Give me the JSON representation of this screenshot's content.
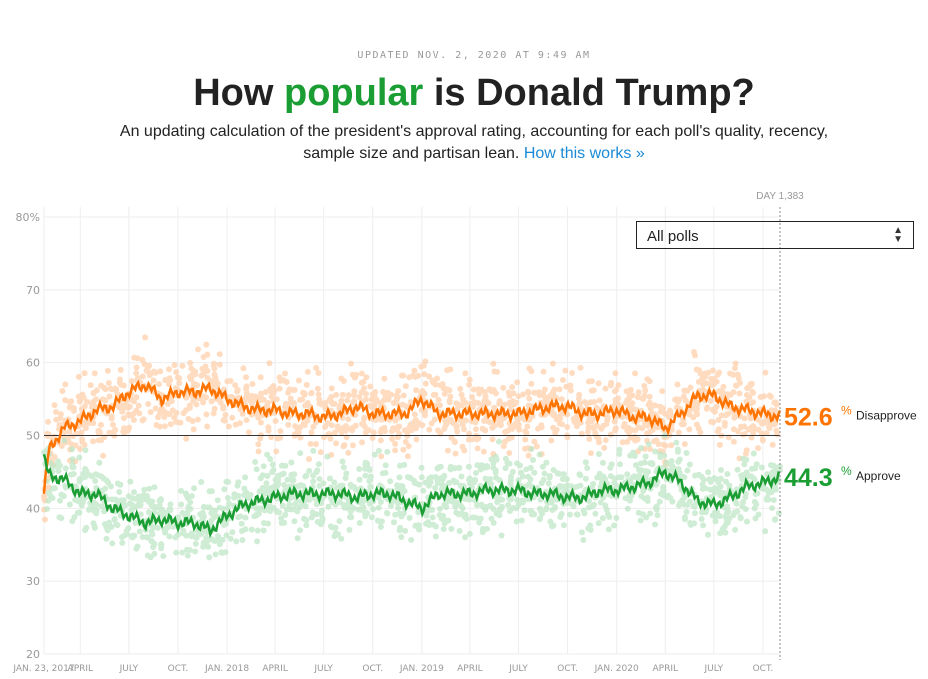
{
  "header": {
    "updated": "UPDATED NOV. 2, 2020 AT 9:49 AM",
    "title_pre": "How ",
    "title_em": "popular",
    "title_post": " is Donald Trump?",
    "subtitle": "An updating calculation of the president's approval rating, accounting for each poll's quality, recency, sample size and partisan lean.",
    "link": "How this works »"
  },
  "filter": {
    "selected": "All polls"
  },
  "colors": {
    "approve": "#1a9e33",
    "disapprove": "#ff7400",
    "approve_light": "#bfe6c6",
    "disapprove_light": "#ffd0ac"
  },
  "chart_data": {
    "type": "line",
    "day_label": "DAY 1,383",
    "ylim": [
      20,
      80
    ],
    "yticks": [
      "80%",
      "70",
      "60",
      "50",
      "40",
      "30",
      "20"
    ],
    "ytick_values": [
      80,
      70,
      60,
      50,
      40,
      30,
      20
    ],
    "reference_line": 50,
    "grid": true,
    "xticks": [
      {
        "date": "2017-01-23",
        "label": "JAN. 23, 2017"
      },
      {
        "date": "2017-04-01",
        "label": "APRIL"
      },
      {
        "date": "2017-07-01",
        "label": "JULY"
      },
      {
        "date": "2017-10-01",
        "label": "OCT."
      },
      {
        "date": "2018-01-01",
        "label": "JAN. 2018"
      },
      {
        "date": "2018-04-01",
        "label": "APRIL"
      },
      {
        "date": "2018-07-01",
        "label": "JULY"
      },
      {
        "date": "2018-10-01",
        "label": "OCT."
      },
      {
        "date": "2019-01-01",
        "label": "JAN. 2019"
      },
      {
        "date": "2019-04-01",
        "label": "APRIL"
      },
      {
        "date": "2019-07-01",
        "label": "JULY"
      },
      {
        "date": "2019-10-01",
        "label": "OCT."
      },
      {
        "date": "2020-01-01",
        "label": "JAN. 2020"
      },
      {
        "date": "2020-04-01",
        "label": "APRIL"
      },
      {
        "date": "2020-07-01",
        "label": "JULY"
      },
      {
        "date": "2020-10-01",
        "label": "OCT."
      }
    ],
    "x": [
      "2017-01-23",
      "2017-02-01",
      "2017-03-01",
      "2017-04-01",
      "2017-05-01",
      "2017-06-01",
      "2017-07-01",
      "2017-08-01",
      "2017-09-01",
      "2017-10-01",
      "2017-11-01",
      "2017-12-01",
      "2018-01-01",
      "2018-02-01",
      "2018-03-01",
      "2018-04-01",
      "2018-05-01",
      "2018-06-01",
      "2018-07-01",
      "2018-08-01",
      "2018-09-01",
      "2018-10-01",
      "2018-11-01",
      "2018-12-01",
      "2019-01-01",
      "2019-02-01",
      "2019-03-01",
      "2019-04-01",
      "2019-05-01",
      "2019-06-01",
      "2019-07-01",
      "2019-08-01",
      "2019-09-01",
      "2019-10-01",
      "2019-11-01",
      "2019-12-01",
      "2020-01-01",
      "2020-02-01",
      "2020-03-01",
      "2020-04-01",
      "2020-05-01",
      "2020-06-01",
      "2020-07-01",
      "2020-08-01",
      "2020-09-01",
      "2020-10-01",
      "2020-11-02"
    ],
    "series": [
      {
        "name": "Disapprove",
        "current": "52.6",
        "values": [
          42,
          48,
          51,
          52,
          53.5,
          54,
          56,
          57,
          55,
          56,
          56,
          56.5,
          55,
          54,
          53.5,
          53.5,
          53,
          53,
          52.5,
          53,
          54,
          53,
          53,
          53,
          55,
          53,
          53,
          53,
          53,
          53,
          53,
          53.5,
          54,
          54,
          53,
          53,
          53.5,
          52.5,
          52.5,
          51,
          53,
          55.5,
          55.5,
          54,
          53.5,
          53,
          52.6
        ]
      },
      {
        "name": "Approve",
        "current": "44.3",
        "values": [
          47,
          44.5,
          44,
          42,
          42,
          40,
          39,
          38,
          38.5,
          38,
          38,
          37,
          39,
          40.5,
          41,
          41.5,
          42,
          42,
          42,
          42,
          41.5,
          42,
          42,
          41,
          40,
          42,
          42,
          42,
          42.5,
          42.5,
          42.5,
          42,
          42,
          41.5,
          41.5,
          42.5,
          42.5,
          43,
          43.5,
          45,
          43.5,
          41,
          40.5,
          41.5,
          43,
          43.5,
          44.3
        ]
      }
    ]
  }
}
